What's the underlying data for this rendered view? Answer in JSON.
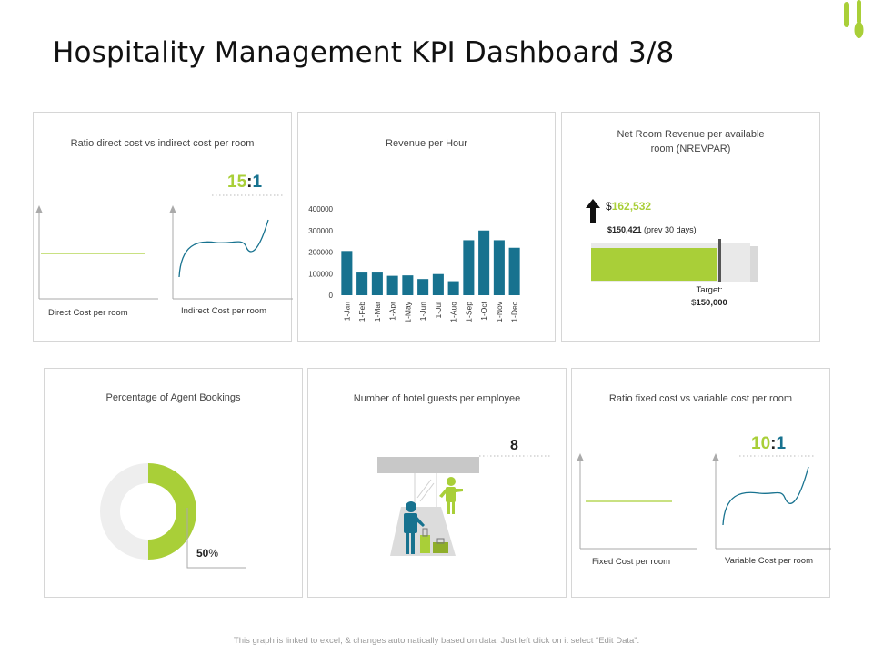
{
  "header": {
    "title": "Hospitality Management KPI Dashboard 3/8",
    "logo_icon": "cutlery-icon"
  },
  "colors": {
    "green": "#a9cf38",
    "teal": "#17728f",
    "gray": "#d9d9d9",
    "light_gray": "#eeeeee",
    "dark": "#222222"
  },
  "panel1": {
    "title": "Ratio direct cost vs indirect cost per room",
    "ratio_left": "15",
    "ratio_colon": ":",
    "ratio_right": "1",
    "left_label": "Direct Cost per room",
    "right_label": "Indirect Cost per room"
  },
  "panel2": {
    "title": "Revenue per Hour"
  },
  "chart_data": {
    "type": "bar",
    "title": "Revenue per Hour",
    "categories": [
      "1-Jan",
      "1-Feb",
      "1-Mar",
      "1-Apr",
      "1-May",
      "1-Jun",
      "1-Jul",
      "1-Aug",
      "1-Sep",
      "1-Oct",
      "1-Nov",
      "1-Dec"
    ],
    "values": [
      205000,
      105000,
      105000,
      90000,
      92000,
      75000,
      98000,
      65000,
      255000,
      300000,
      255000,
      220000
    ],
    "ylim": [
      0,
      400000
    ],
    "yticks": [
      "400000",
      "300000",
      "200000",
      "100000",
      "0"
    ],
    "xlabel": "",
    "ylabel": ""
  },
  "panel3": {
    "title_line1": "Net Room Revenue per available",
    "title_line2": "room (NREVPAR)",
    "current_currency": "$",
    "current_value": "162,532",
    "prev_value": "$150,421",
    "prev_suffix": " (prev 30 days)",
    "target_label": "Target:",
    "target_currency": "$",
    "target_value": "150,000",
    "arrow_icon": "arrow-up-icon"
  },
  "panel4": {
    "title": "Percentage of Agent Bookings",
    "percent_value": "50",
    "percent_sign": "%",
    "fraction": 0.5
  },
  "panel5": {
    "title": "Number of hotel guests per employee",
    "value": "8"
  },
  "panel6": {
    "title": "Ratio fixed cost vs variable cost per room",
    "ratio_left": "10",
    "ratio_colon": ":",
    "ratio_right": "1",
    "left_label": "Fixed Cost per room",
    "right_label": "Variable Cost per room"
  },
  "footer": {
    "note": "This graph is linked to excel, & changes automatically based on data. Just left click on it select “Edit Data”."
  }
}
